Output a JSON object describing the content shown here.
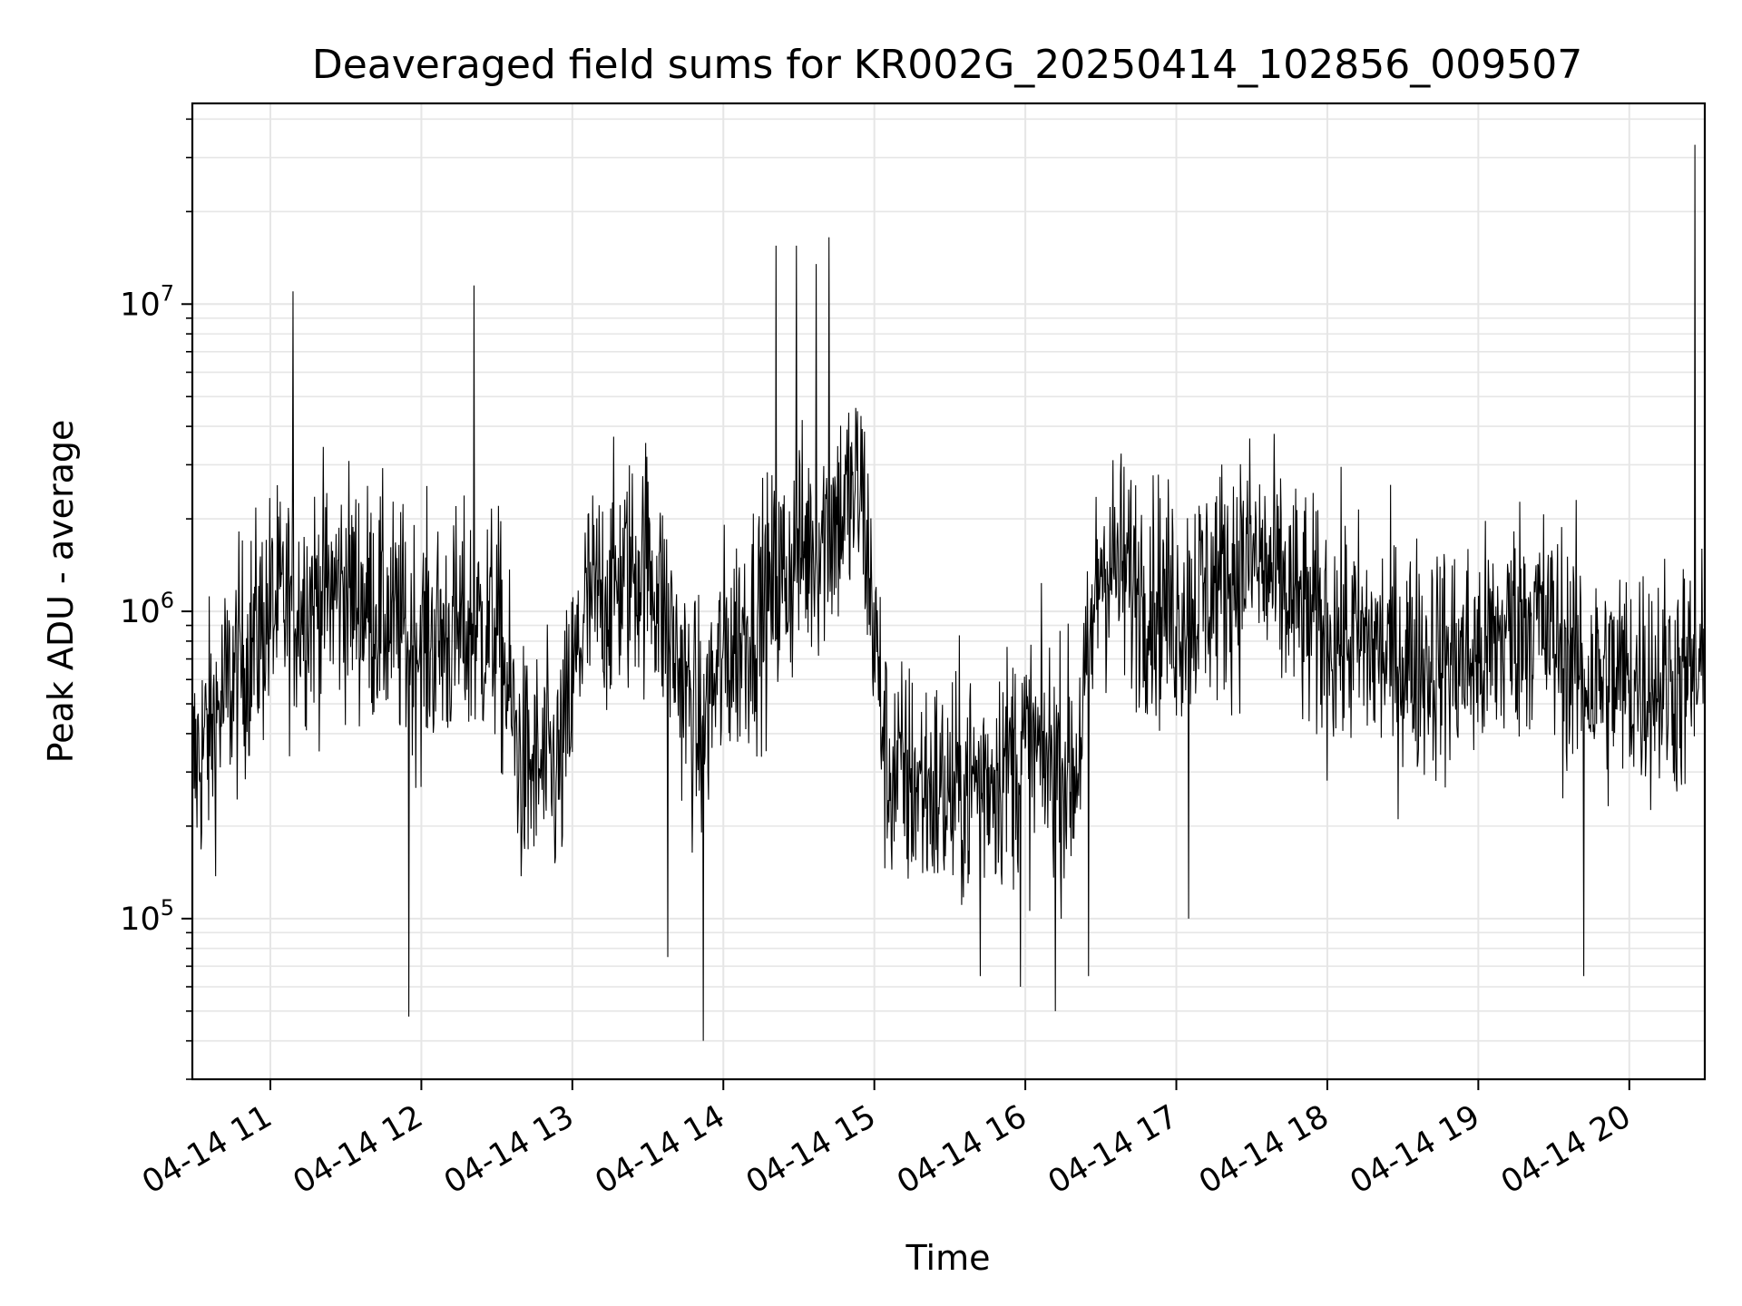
{
  "chart_data": {
    "type": "line",
    "title": "Deaveraged field sums for KR002G_20250414_102856_009507",
    "xlabel": "Time",
    "ylabel": "Peak ADU - average",
    "yscale": "log",
    "ylim": [
      30000,
      45000000
    ],
    "xlim": [
      "2025-04-14 10:29",
      "2025-04-14 20:30"
    ],
    "grid": true,
    "line_color": "#000000",
    "grid_color": "#e6e6e6",
    "x_tick_labels": [
      "04-14 11",
      "04-14 12",
      "04-14 13",
      "04-14 14",
      "04-14 15",
      "04-14 16",
      "04-14 17",
      "04-14 18",
      "04-14 19",
      "04-14 20"
    ],
    "x_tick_times": [
      "2025-04-14 11:00",
      "2025-04-14 12:00",
      "2025-04-14 13:00",
      "2025-04-14 14:00",
      "2025-04-14 15:00",
      "2025-04-14 16:00",
      "2025-04-14 17:00",
      "2025-04-14 18:00",
      "2025-04-14 19:00",
      "2025-04-14 20:00"
    ],
    "y_ticks": [
      {
        "value": 100000,
        "base": "10",
        "exp": "5"
      },
      {
        "value": 1000000,
        "base": "10",
        "exp": "6"
      },
      {
        "value": 10000000,
        "base": "10",
        "exp": "7"
      }
    ],
    "series": [
      {
        "envelope": [
          {
            "x": "2025-04-14 10:29",
            "median": 300000
          },
          {
            "x": "2025-04-14 10:45",
            "median": 600000
          },
          {
            "x": "2025-04-14 11:00",
            "median": 1000000
          },
          {
            "x": "2025-04-14 11:30",
            "median": 1200000
          },
          {
            "x": "2025-04-14 11:50",
            "median": 900000
          },
          {
            "x": "2025-04-14 12:00",
            "median": 800000
          },
          {
            "x": "2025-04-14 12:30",
            "median": 900000
          },
          {
            "x": "2025-04-14 12:40",
            "median": 300000
          },
          {
            "x": "2025-04-14 12:55",
            "median": 300000
          },
          {
            "x": "2025-04-14 13:05",
            "median": 1000000
          },
          {
            "x": "2025-04-14 13:30",
            "median": 1500000
          },
          {
            "x": "2025-04-14 13:50",
            "median": 400000
          },
          {
            "x": "2025-04-14 14:00",
            "median": 700000
          },
          {
            "x": "2025-04-14 14:30",
            "median": 1500000
          },
          {
            "x": "2025-04-14 14:55",
            "median": 2500000
          },
          {
            "x": "2025-04-14 15:05",
            "median": 300000
          },
          {
            "x": "2025-04-14 15:30",
            "median": 250000
          },
          {
            "x": "2025-04-14 16:00",
            "median": 350000
          },
          {
            "x": "2025-04-14 16:20",
            "median": 300000
          },
          {
            "x": "2025-04-14 16:30",
            "median": 1500000
          },
          {
            "x": "2025-04-14 17:00",
            "median": 1000000
          },
          {
            "x": "2025-04-14 17:30",
            "median": 1500000
          },
          {
            "x": "2025-04-14 17:55",
            "median": 900000
          },
          {
            "x": "2025-04-14 18:30",
            "median": 700000
          },
          {
            "x": "2025-04-14 19:00",
            "median": 700000
          },
          {
            "x": "2025-04-14 19:20",
            "median": 1000000
          },
          {
            "x": "2025-04-14 19:45",
            "median": 600000
          },
          {
            "x": "2025-04-14 20:30",
            "median": 600000
          }
        ],
        "spikes": [
          {
            "x": "2025-04-14 11:09",
            "y": 11000000
          },
          {
            "x": "2025-04-14 12:21",
            "y": 11500000
          },
          {
            "x": "2025-04-14 14:21",
            "y": 15500000
          },
          {
            "x": "2025-04-14 14:29",
            "y": 15500000
          },
          {
            "x": "2025-04-14 14:37",
            "y": 13500000
          },
          {
            "x": "2025-04-14 14:42",
            "y": 16500000
          },
          {
            "x": "2025-04-14 20:26",
            "y": 33000000
          },
          {
            "x": "2025-04-14 11:55",
            "y": 48000
          },
          {
            "x": "2025-04-14 13:52",
            "y": 40000
          },
          {
            "x": "2025-04-14 15:42",
            "y": 65000
          },
          {
            "x": "2025-04-14 15:58",
            "y": 60000
          },
          {
            "x": "2025-04-14 16:12",
            "y": 50000
          },
          {
            "x": "2025-04-14 16:25",
            "y": 65000
          },
          {
            "x": "2025-04-14 17:05",
            "y": 100000
          },
          {
            "x": "2025-04-14 19:42",
            "y": 65000
          },
          {
            "x": "2025-04-14 13:38",
            "y": 75000
          }
        ]
      }
    ]
  }
}
